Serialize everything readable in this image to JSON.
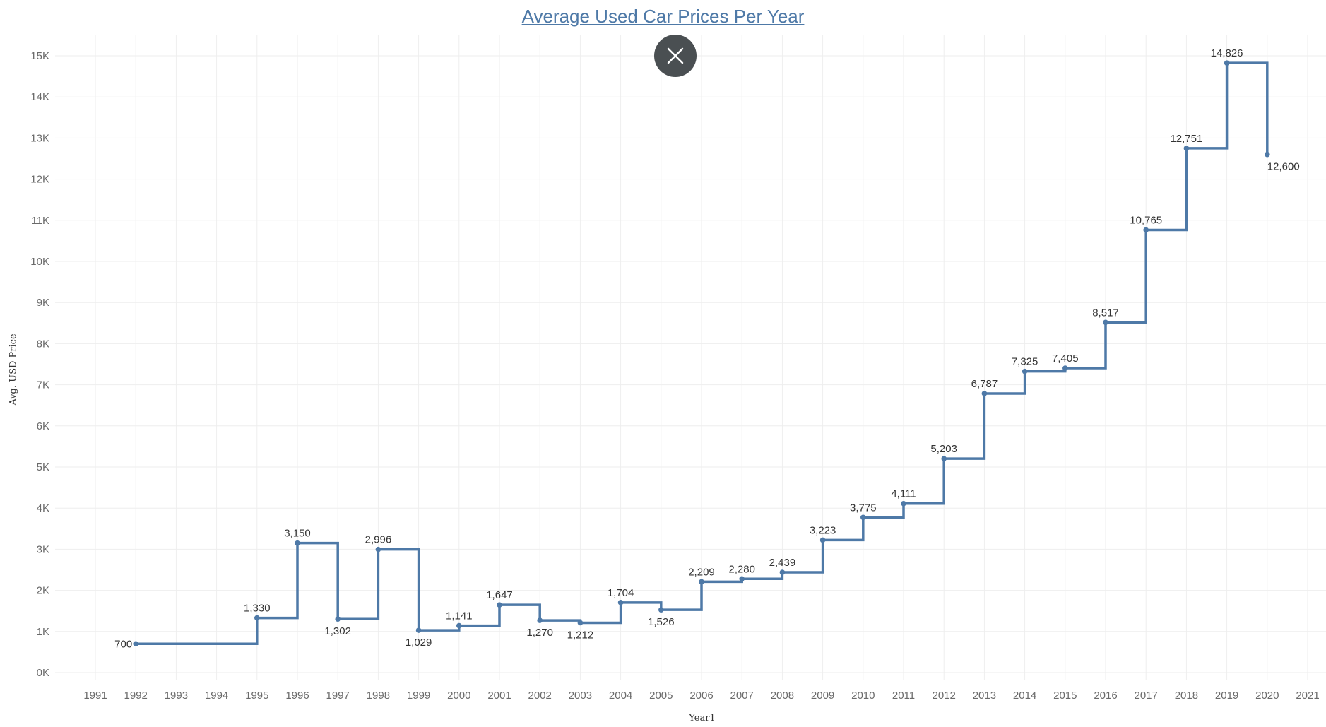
{
  "chart_data": {
    "type": "line",
    "title": "Average Used Car Prices Per Year",
    "xlabel": "Year1",
    "ylabel": "Avg. USD Price",
    "line_shape": "step",
    "xlim": [
      1990,
      2021
    ],
    "ylim": [
      0,
      15500
    ],
    "x_ticks": [
      "1991",
      "1992",
      "1993",
      "1994",
      "1995",
      "1996",
      "1997",
      "1998",
      "1999",
      "2000",
      "2001",
      "2002",
      "2003",
      "2004",
      "2005",
      "2006",
      "2007",
      "2008",
      "2009",
      "2010",
      "2011",
      "2012",
      "2013",
      "2014",
      "2015",
      "2016",
      "2017",
      "2018",
      "2019",
      "2020",
      "2021"
    ],
    "y_ticks": [
      "0K",
      "1K",
      "2K",
      "3K",
      "4K",
      "5K",
      "6K",
      "7K",
      "8K",
      "9K",
      "10K",
      "11K",
      "12K",
      "13K",
      "14K",
      "15K"
    ],
    "grid": true,
    "series_color": "#4e79a7",
    "series": [
      {
        "x": [
          1992,
          1995,
          1996,
          1997,
          1998,
          1999,
          2000,
          2001,
          2002,
          2003,
          2004,
          2005,
          2006,
          2007,
          2008,
          2009,
          2010,
          2011,
          2012,
          2013,
          2014,
          2015,
          2016,
          2017,
          2018,
          2019,
          2020
        ],
        "values": [
          700,
          1330,
          3150,
          1302,
          2996,
          1029,
          1141,
          1647,
          1270,
          1212,
          1704,
          1526,
          2209,
          2280,
          2439,
          3223,
          3775,
          4111,
          5203,
          6787,
          7325,
          7405,
          8517,
          10765,
          12751,
          14826,
          12600
        ],
        "labels": [
          "700",
          "1,330",
          "3,150",
          "1,302",
          "2,996",
          "1,029",
          "1,141",
          "1,647",
          "1,270",
          "1,212",
          "1,704",
          "1,526",
          "2,209",
          "2,280",
          "2,439",
          "3,223",
          "3,775",
          "4,111",
          "5,203",
          "6,787",
          "7,325",
          "7,405",
          "8,517",
          "10,765",
          "12,751",
          "14,826",
          "12,600"
        ]
      }
    ]
  },
  "close_icon": "close-x-icon"
}
